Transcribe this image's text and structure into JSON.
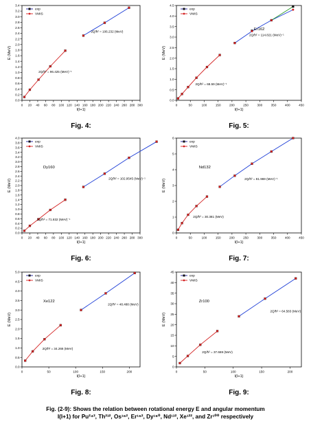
{
  "caption": {
    "line1": "Fig. (2-9): Shows the relation between rotational energy  E and angular momentum",
    "line2": "I(I+1) for  Pu²⁴², Th²³², Os¹⁶², Er¹⁶², Dy¹⁶⁰, Nd¹³², Xe¹²², and Zr¹⁰⁰ respectively"
  },
  "colors": {
    "exp": "#1a1aa0",
    "vmis": "#d42020",
    "line_low": "#d42020",
    "line_high": "#1a3bd6",
    "exp_green": "#2a9a2a"
  },
  "chart_data": [
    {
      "id": "fig4",
      "type": "line",
      "figure_label": "Fig. 4:",
      "xlabel": "I(I+1)",
      "ylabel": "E (MeV)",
      "xlim": [
        0,
        300
      ],
      "ylim": [
        0,
        3.4
      ],
      "xticks": [
        0,
        20,
        40,
        60,
        80,
        100,
        120,
        140,
        160,
        180,
        200,
        220,
        240,
        260,
        280,
        300
      ],
      "yticks": [
        0.0,
        0.2,
        0.4,
        0.6,
        0.8,
        1.0,
        1.2,
        1.4,
        1.6,
        1.8,
        2.0,
        2.2,
        2.4,
        2.6,
        2.8,
        3.0,
        3.2,
        3.4
      ],
      "ytick_decimals": 1,
      "legend": [
        "exp",
        "VMIS"
      ],
      "series": [
        {
          "name": "exp",
          "low": [
            [
              6,
              0.12
            ],
            [
              20,
              0.38
            ],
            [
              42,
              0.74
            ],
            [
              72,
              1.22
            ],
            [
              110,
              1.78
            ]
          ],
          "high": [
            [
              156,
              2.32
            ],
            [
              210,
              2.78
            ],
            [
              272,
              3.32
            ]
          ]
        },
        {
          "name": "VMIS",
          "low": [
            [
              6,
              0.12
            ],
            [
              20,
              0.38
            ],
            [
              42,
              0.74
            ],
            [
              72,
              1.22
            ],
            [
              110,
              1.78
            ]
          ],
          "high": [
            [
              156,
              2.32
            ],
            [
              210,
              2.78
            ],
            [
              272,
              3.32
            ]
          ]
        }
      ],
      "annotations": [
        {
          "text": "2Q/ħ² = 96.425 (MeV)⁻¹",
          "x": 42,
          "y": 0.98
        },
        {
          "text": "2Q/ħ² = 106.232 (MeV)",
          "x": 175,
          "y": 2.43
        }
      ]
    },
    {
      "id": "fig5",
      "type": "line",
      "figure_label": "Fig. 5:",
      "xlabel": "I(I+1)",
      "ylabel": "E (MeV)",
      "xlim": [
        0,
        450
      ],
      "ylim": [
        0,
        4.5
      ],
      "xticks": [
        0,
        50,
        100,
        150,
        200,
        250,
        300,
        350,
        400,
        450
      ],
      "yticks": [
        0.0,
        0.5,
        1.0,
        1.5,
        2.0,
        2.5,
        3.0,
        3.5,
        4.0,
        4.5
      ],
      "ytick_decimals": 1,
      "legend": [
        "exp",
        "VMIS"
      ],
      "inset_label": "Er162",
      "series": [
        {
          "name": "exp",
          "low": [
            [
              6,
              0.09
            ],
            [
              20,
              0.3
            ],
            [
              42,
              0.63
            ],
            [
              72,
              1.07
            ],
            [
              110,
              1.58
            ],
            [
              156,
              2.15
            ]
          ],
          "high": [
            [
              210,
              2.72
            ],
            [
              272,
              3.3
            ],
            [
              342,
              3.8
            ],
            [
              420,
              4.45
            ]
          ]
        },
        {
          "name": "VMIS",
          "low": [
            [
              6,
              0.09
            ],
            [
              20,
              0.3
            ],
            [
              42,
              0.63
            ],
            [
              72,
              1.07
            ],
            [
              110,
              1.58
            ],
            [
              156,
              2.15
            ]
          ],
          "high": [
            [
              210,
              2.72
            ],
            [
              272,
              3.28
            ],
            [
              342,
              3.8
            ],
            [
              420,
              4.3
            ]
          ]
        }
      ],
      "annotations": [
        {
          "text": "2Q/ħ² = 68.59 (MeV)⁻¹",
          "x": 68,
          "y": 0.72
        },
        {
          "text": "2Q/ħ² = 114.821 (MeV)⁻¹",
          "x": 262,
          "y": 3.05
        }
      ]
    },
    {
      "id": "fig6",
      "type": "line",
      "figure_label": "Fig. 6:",
      "xlabel": "I(I+1)",
      "ylabel": "E (MeV)",
      "xlim": [
        0,
        300
      ],
      "ylim": [
        0,
        4.0
      ],
      "xticks": [
        0,
        20,
        40,
        60,
        80,
        100,
        120,
        140,
        160,
        180,
        200,
        220,
        240,
        260,
        280,
        300
      ],
      "yticks": [
        0.0,
        0.2,
        0.4,
        0.6,
        0.8,
        1.0,
        1.2,
        1.4,
        1.6,
        1.8,
        2.0,
        2.2,
        2.4,
        2.6,
        2.8,
        3.0,
        3.2,
        3.4,
        3.6,
        3.8,
        4.0
      ],
      "ytick_decimals": 1,
      "legend": [
        "exp",
        "VMIS"
      ],
      "inset_label": "Dy160",
      "series": [
        {
          "name": "exp",
          "low": [
            [
              6,
              0.09
            ],
            [
              20,
              0.3
            ],
            [
              42,
              0.58
            ],
            [
              72,
              0.97
            ],
            [
              110,
              1.4
            ]
          ],
          "high": [
            [
              156,
              1.94
            ],
            [
              210,
              2.5
            ],
            [
              272,
              3.17
            ],
            [
              342,
              3.85
            ]
          ]
        },
        {
          "name": "VMIS",
          "low": [
            [
              6,
              0.09
            ],
            [
              20,
              0.3
            ],
            [
              42,
              0.58
            ],
            [
              72,
              0.97
            ],
            [
              110,
              1.4
            ]
          ],
          "high": [
            [
              156,
              1.94
            ],
            [
              210,
              2.5
            ],
            [
              272,
              3.17
            ],
            [
              342,
              3.85
            ]
          ]
        }
      ],
      "annotations": [
        {
          "text": "2Q/ħ² = 71.832 (MeV)⁻¹",
          "x": 38,
          "y": 0.52
        },
        {
          "text": "2Q/ħ² = 102.9545 (MeV)⁻¹",
          "x": 220,
          "y": 2.25
        }
      ]
    },
    {
      "id": "fig7",
      "type": "line",
      "figure_label": "Fig. 7:",
      "xlabel": "I(I+1)",
      "ylabel": "E (MeV)",
      "xlim": [
        0,
        450
      ],
      "ylim": [
        0,
        6
      ],
      "xticks": [
        0,
        50,
        100,
        150,
        200,
        250,
        300,
        350,
        400,
        450
      ],
      "yticks": [
        0,
        1,
        2,
        3,
        4,
        5,
        6
      ],
      "ytick_decimals": 0,
      "legend": [
        "exp",
        "VMIS"
      ],
      "inset_label": "Nd132",
      "series": [
        {
          "name": "exp",
          "low": [
            [
              6,
              0.2
            ],
            [
              20,
              0.62
            ],
            [
              42,
              1.15
            ],
            [
              72,
              1.7
            ],
            [
              110,
              2.3
            ]
          ],
          "high": [
            [
              156,
              2.92
            ],
            [
              210,
              3.62
            ],
            [
              272,
              4.38
            ],
            [
              342,
              5.15
            ],
            [
              420,
              6.0
            ]
          ]
        },
        {
          "name": "VMIS",
          "low": [
            [
              6,
              0.2
            ],
            [
              20,
              0.62
            ],
            [
              42,
              1.15
            ],
            [
              72,
              1.7
            ],
            [
              110,
              2.3
            ]
          ],
          "high": [
            [
              156,
              2.92
            ],
            [
              210,
              3.62
            ],
            [
              272,
              4.38
            ],
            [
              342,
              5.15
            ],
            [
              420,
              6.0
            ]
          ]
        }
      ],
      "annotations": [
        {
          "text": "2Q/ħ² = 30.381 (MeV)",
          "x": 60,
          "y": 0.95
        },
        {
          "text": "2Q/ħ² = 81.969 (MeV)⁻¹",
          "x": 245,
          "y": 3.35
        }
      ]
    },
    {
      "id": "fig8",
      "type": "line",
      "figure_label": "Fig. 8:",
      "xlabel": "I(I+1)",
      "ylabel": "E (MeV)",
      "xlim": [
        0,
        220
      ],
      "ylim": [
        0,
        5.0
      ],
      "xticks": [
        0,
        50,
        100,
        150,
        200
      ],
      "yticks": [
        0.0,
        0.5,
        1.0,
        1.5,
        2.0,
        2.5,
        3.0,
        3.5,
        4.0,
        4.5,
        5.0
      ],
      "ytick_decimals": 1,
      "legend": [
        "exp",
        "VMIS"
      ],
      "inset_label": "Xe122",
      "series": [
        {
          "name": "exp",
          "low": [
            [
              6,
              0.33
            ],
            [
              20,
              0.82
            ],
            [
              42,
              1.46
            ],
            [
              72,
              2.2
            ]
          ],
          "high": [
            [
              110,
              3.0
            ],
            [
              156,
              3.88
            ],
            [
              210,
              4.95
            ]
          ]
        },
        {
          "name": "VMIS",
          "low": [
            [
              6,
              0.33
            ],
            [
              20,
              0.82
            ],
            [
              42,
              1.46
            ],
            [
              72,
              2.2
            ]
          ],
          "high": [
            [
              110,
              3.0
            ],
            [
              156,
              3.88
            ],
            [
              210,
              4.95
            ]
          ]
        }
      ],
      "annotations": [
        {
          "text": "2Q/ħ² = 34.266 (MeV)",
          "x": 38,
          "y": 0.9
        },
        {
          "text": "2Q/ħ² = 48.488 (MeV)",
          "x": 160,
          "y": 3.25
        }
      ]
    },
    {
      "id": "fig9",
      "type": "line",
      "figure_label": "Fig. 9:",
      "xlabel": "I(I+1)",
      "ylabel": "E (MeV)",
      "xlim": [
        0,
        220
      ],
      "ylim": [
        0,
        45
      ],
      "xticks": [
        0,
        50,
        100,
        150,
        200
      ],
      "yticks": [
        0,
        5,
        10,
        15,
        20,
        25,
        30,
        35,
        40,
        45
      ],
      "ytick_decimals": 0,
      "legend": [
        "exp",
        "VMIS"
      ],
      "inset_label": "Zr100",
      "series": [
        {
          "name": "exp",
          "low": [
            [
              6,
              1.8
            ],
            [
              20,
              5.2
            ],
            [
              42,
              10.5
            ],
            [
              72,
              17.0
            ]
          ],
          "high": [
            [
              110,
              24.0
            ],
            [
              156,
              32.4
            ],
            [
              210,
              42.0
            ]
          ]
        },
        {
          "name": "VMIS",
          "low": [
            [
              6,
              1.8
            ],
            [
              20,
              5.2
            ],
            [
              42,
              10.5
            ],
            [
              72,
              17.0
            ]
          ],
          "high": [
            [
              110,
              24.0
            ],
            [
              156,
              32.4
            ],
            [
              210,
              42.0
            ]
          ]
        }
      ],
      "annotations": [
        {
          "text": "2Q/ħ² = 37.669 (MeV)",
          "x": 45,
          "y": 6.5
        },
        {
          "text": "2Q/ħ² = 64.583 (MeV)",
          "x": 165,
          "y": 26.0
        }
      ]
    }
  ]
}
